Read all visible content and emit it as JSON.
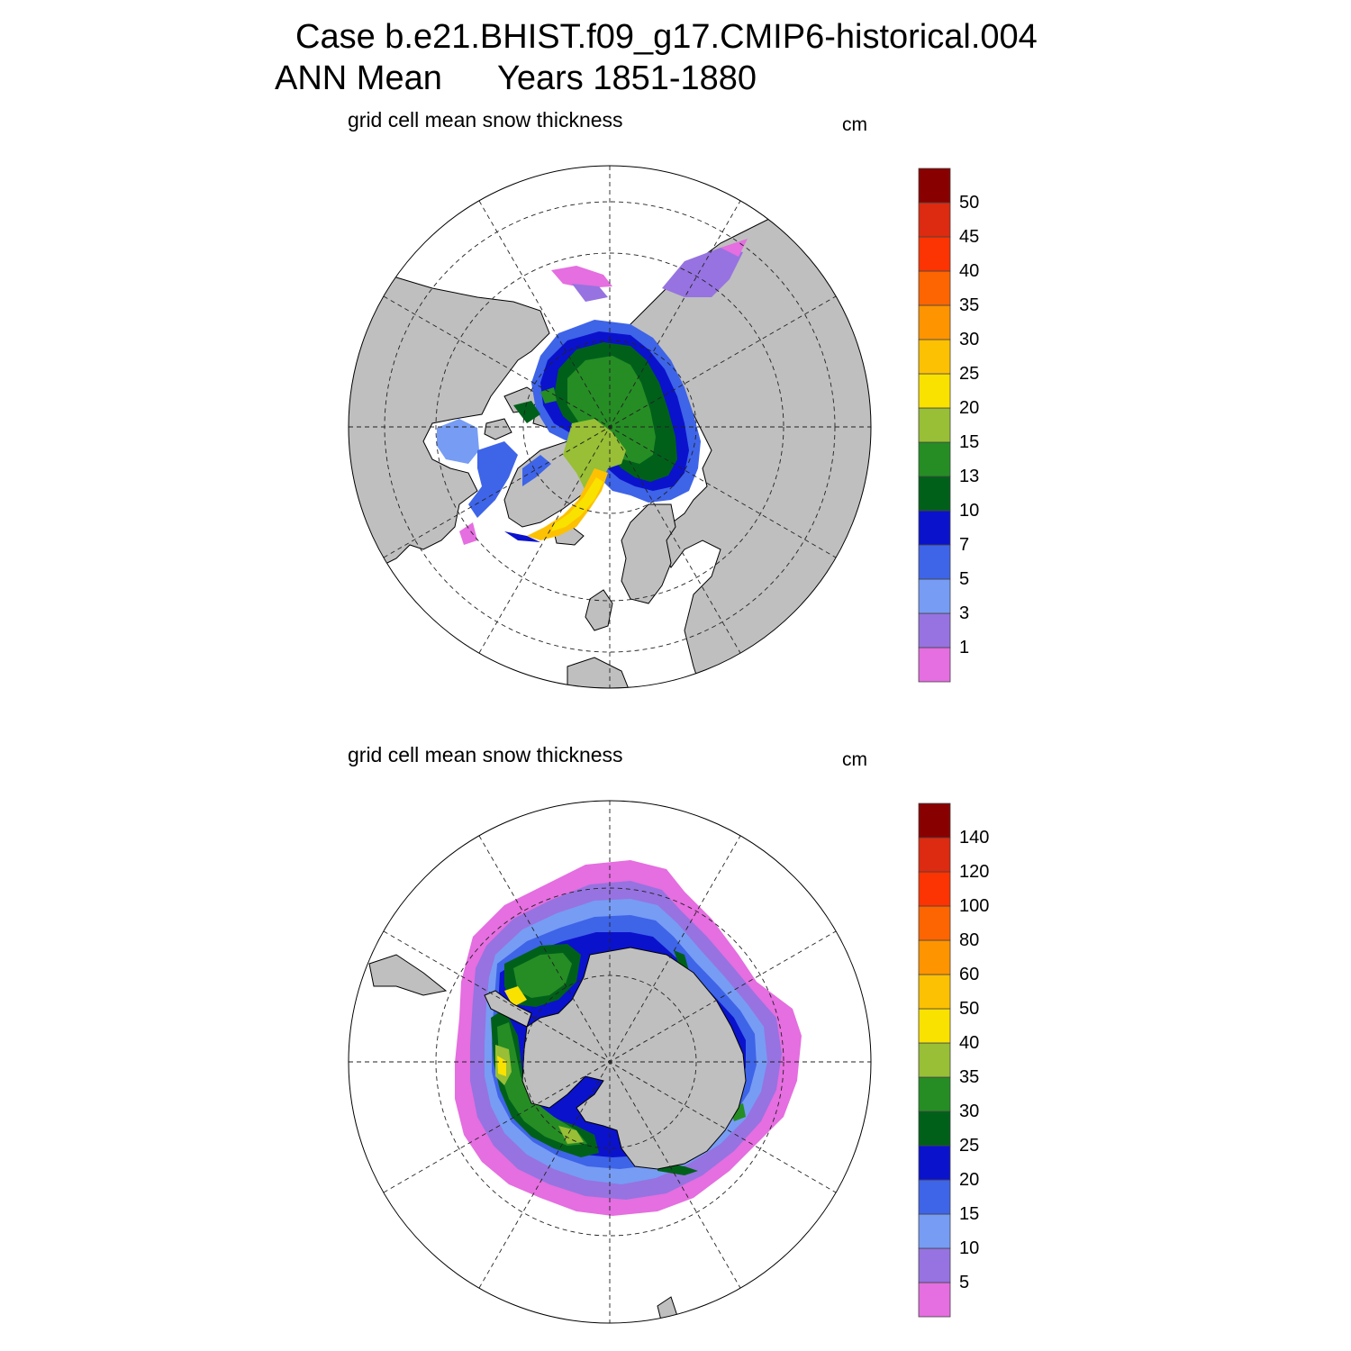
{
  "header": {
    "title_line1": "Case b.e21.BHIST.f09_g17.CMIP6-historical.004",
    "title_line2_left": "ANN Mean",
    "title_line2_right": "Years 1851-1880"
  },
  "colors": {
    "land": "#bfbfbf",
    "palette": [
      "#e56ee0",
      "#9673e0",
      "#779cf4",
      "#3e64e8",
      "#0b12cc",
      "#00601a",
      "#258d24",
      "#98bf35",
      "#f9e100",
      "#fdc103",
      "#fd9400",
      "#fc6502",
      "#fc3302",
      "#dc2b10",
      "#890000"
    ]
  },
  "maps": [
    {
      "id": "north",
      "variable_label": "grid cell mean snow thickness",
      "units": "cm",
      "colorbar_levels": [
        "50",
        "45",
        "40",
        "35",
        "30",
        "25",
        "20",
        "15",
        "13",
        "10",
        "7",
        "5",
        "3",
        "1"
      ]
    },
    {
      "id": "south",
      "variable_label": "grid cell mean snow thickness",
      "units": "cm",
      "colorbar_levels": [
        "140",
        "120",
        "100",
        "80",
        "60",
        "50",
        "40",
        "35",
        "30",
        "25",
        "20",
        "15",
        "10",
        "5"
      ]
    }
  ]
}
